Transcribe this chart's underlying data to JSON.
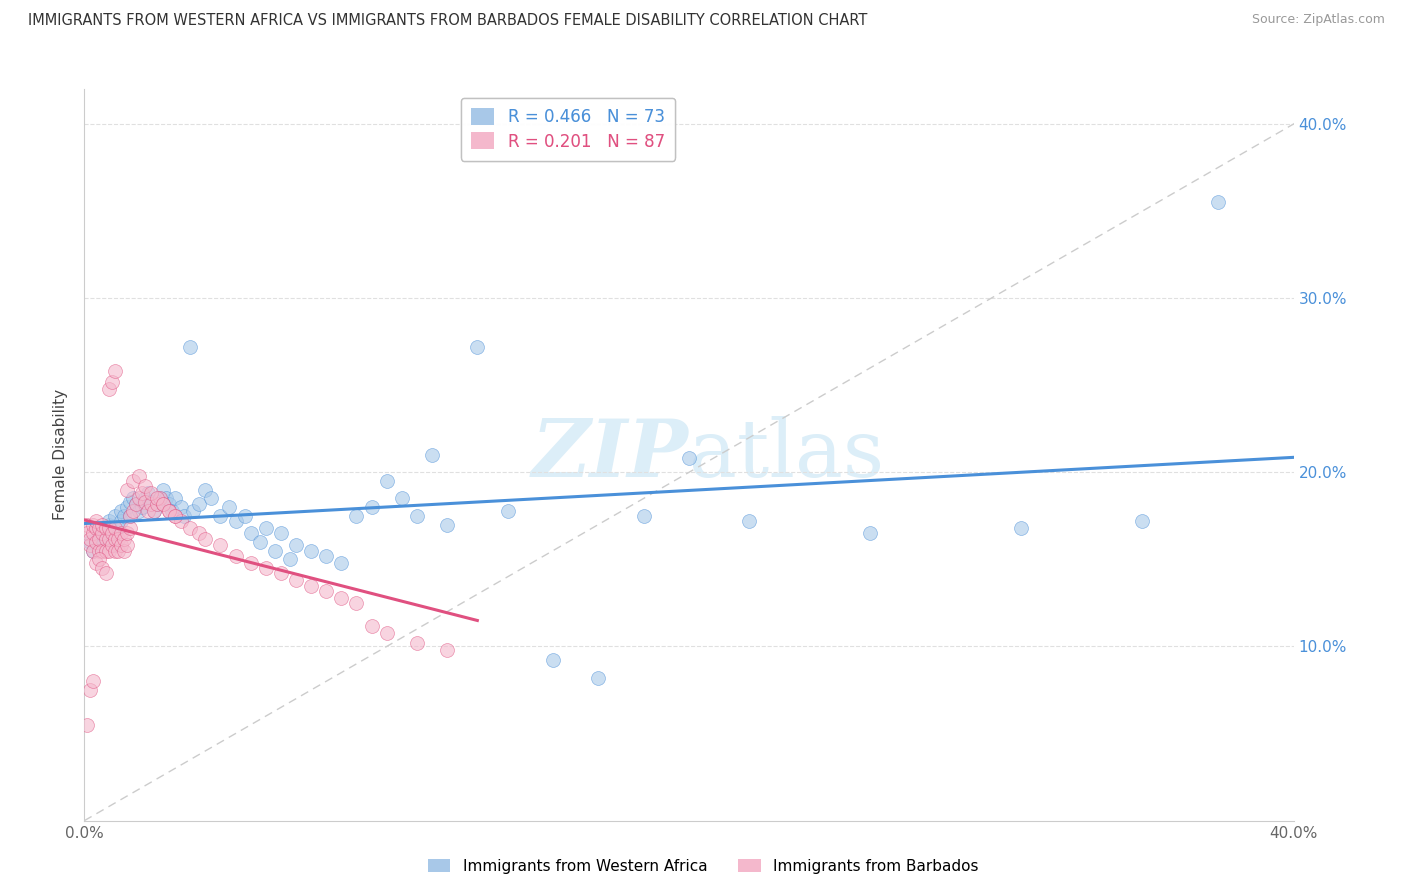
{
  "title": "IMMIGRANTS FROM WESTERN AFRICA VS IMMIGRANTS FROM BARBADOS FEMALE DISABILITY CORRELATION CHART",
  "source": "Source: ZipAtlas.com",
  "ylabel": "Female Disability",
  "xlim": [
    0.0,
    0.4
  ],
  "ylim": [
    0.0,
    0.42
  ],
  "xtick_labels": [
    "0.0%",
    "",
    "",
    "",
    "40.0%"
  ],
  "xtick_vals": [
    0.0,
    0.1,
    0.2,
    0.3,
    0.4
  ],
  "ytick_labels": [
    "10.0%",
    "20.0%",
    "30.0%",
    "40.0%"
  ],
  "ytick_vals": [
    0.1,
    0.2,
    0.3,
    0.4
  ],
  "blue_R": 0.466,
  "blue_N": 73,
  "pink_R": 0.201,
  "pink_N": 87,
  "blue_color": "#a8c8e8",
  "pink_color": "#f4b8cc",
  "blue_line_color": "#4a90d9",
  "pink_line_color": "#e05080",
  "diag_line_color": "#cccccc",
  "watermark_color": "#dceef8",
  "legend_blue_label": "Immigrants from Western Africa",
  "legend_pink_label": "Immigrants from Barbados",
  "blue_scatter_x": [
    0.002,
    0.003,
    0.004,
    0.005,
    0.005,
    0.006,
    0.007,
    0.008,
    0.008,
    0.009,
    0.01,
    0.01,
    0.011,
    0.012,
    0.012,
    0.013,
    0.014,
    0.015,
    0.015,
    0.016,
    0.017,
    0.018,
    0.019,
    0.02,
    0.021,
    0.022,
    0.023,
    0.024,
    0.025,
    0.026,
    0.027,
    0.028,
    0.029,
    0.03,
    0.032,
    0.033,
    0.035,
    0.036,
    0.038,
    0.04,
    0.042,
    0.045,
    0.048,
    0.05,
    0.053,
    0.055,
    0.058,
    0.06,
    0.063,
    0.065,
    0.068,
    0.07,
    0.075,
    0.08,
    0.085,
    0.09,
    0.095,
    0.1,
    0.105,
    0.11,
    0.115,
    0.12,
    0.13,
    0.14,
    0.155,
    0.17,
    0.185,
    0.2,
    0.22,
    0.26,
    0.31,
    0.35,
    0.375
  ],
  "blue_scatter_y": [
    0.16,
    0.155,
    0.162,
    0.158,
    0.165,
    0.168,
    0.163,
    0.17,
    0.172,
    0.165,
    0.158,
    0.175,
    0.168,
    0.172,
    0.178,
    0.175,
    0.18,
    0.175,
    0.183,
    0.185,
    0.182,
    0.178,
    0.18,
    0.185,
    0.188,
    0.183,
    0.178,
    0.182,
    0.185,
    0.19,
    0.185,
    0.182,
    0.178,
    0.185,
    0.18,
    0.175,
    0.272,
    0.178,
    0.182,
    0.19,
    0.185,
    0.175,
    0.18,
    0.172,
    0.175,
    0.165,
    0.16,
    0.168,
    0.155,
    0.165,
    0.15,
    0.158,
    0.155,
    0.152,
    0.148,
    0.175,
    0.18,
    0.195,
    0.185,
    0.175,
    0.21,
    0.17,
    0.272,
    0.178,
    0.092,
    0.082,
    0.175,
    0.208,
    0.172,
    0.165,
    0.168,
    0.172,
    0.355
  ],
  "pink_scatter_x": [
    0.001,
    0.001,
    0.002,
    0.002,
    0.003,
    0.003,
    0.003,
    0.004,
    0.004,
    0.004,
    0.005,
    0.005,
    0.005,
    0.006,
    0.006,
    0.006,
    0.007,
    0.007,
    0.007,
    0.008,
    0.008,
    0.008,
    0.009,
    0.009,
    0.01,
    0.01,
    0.01,
    0.011,
    0.011,
    0.012,
    0.012,
    0.013,
    0.013,
    0.014,
    0.014,
    0.015,
    0.015,
    0.016,
    0.017,
    0.018,
    0.019,
    0.02,
    0.021,
    0.022,
    0.023,
    0.024,
    0.025,
    0.026,
    0.028,
    0.03,
    0.032,
    0.035,
    0.038,
    0.04,
    0.045,
    0.05,
    0.055,
    0.06,
    0.065,
    0.07,
    0.075,
    0.08,
    0.085,
    0.09,
    0.095,
    0.1,
    0.11,
    0.12,
    0.014,
    0.016,
    0.018,
    0.02,
    0.022,
    0.024,
    0.026,
    0.028,
    0.03,
    0.008,
    0.009,
    0.01,
    0.004,
    0.005,
    0.006,
    0.007,
    0.002,
    0.003,
    0.001
  ],
  "pink_scatter_y": [
    0.17,
    0.165,
    0.158,
    0.162,
    0.155,
    0.165,
    0.17,
    0.16,
    0.168,
    0.172,
    0.155,
    0.162,
    0.168,
    0.155,
    0.165,
    0.17,
    0.155,
    0.162,
    0.168,
    0.155,
    0.162,
    0.168,
    0.158,
    0.165,
    0.155,
    0.162,
    0.168,
    0.155,
    0.162,
    0.158,
    0.165,
    0.155,
    0.162,
    0.158,
    0.165,
    0.168,
    0.175,
    0.178,
    0.182,
    0.185,
    0.188,
    0.183,
    0.178,
    0.182,
    0.178,
    0.182,
    0.185,
    0.182,
    0.178,
    0.175,
    0.172,
    0.168,
    0.165,
    0.162,
    0.158,
    0.152,
    0.148,
    0.145,
    0.142,
    0.138,
    0.135,
    0.132,
    0.128,
    0.125,
    0.112,
    0.108,
    0.102,
    0.098,
    0.19,
    0.195,
    0.198,
    0.192,
    0.188,
    0.185,
    0.182,
    0.178,
    0.175,
    0.248,
    0.252,
    0.258,
    0.148,
    0.15,
    0.145,
    0.142,
    0.075,
    0.08,
    0.055
  ]
}
